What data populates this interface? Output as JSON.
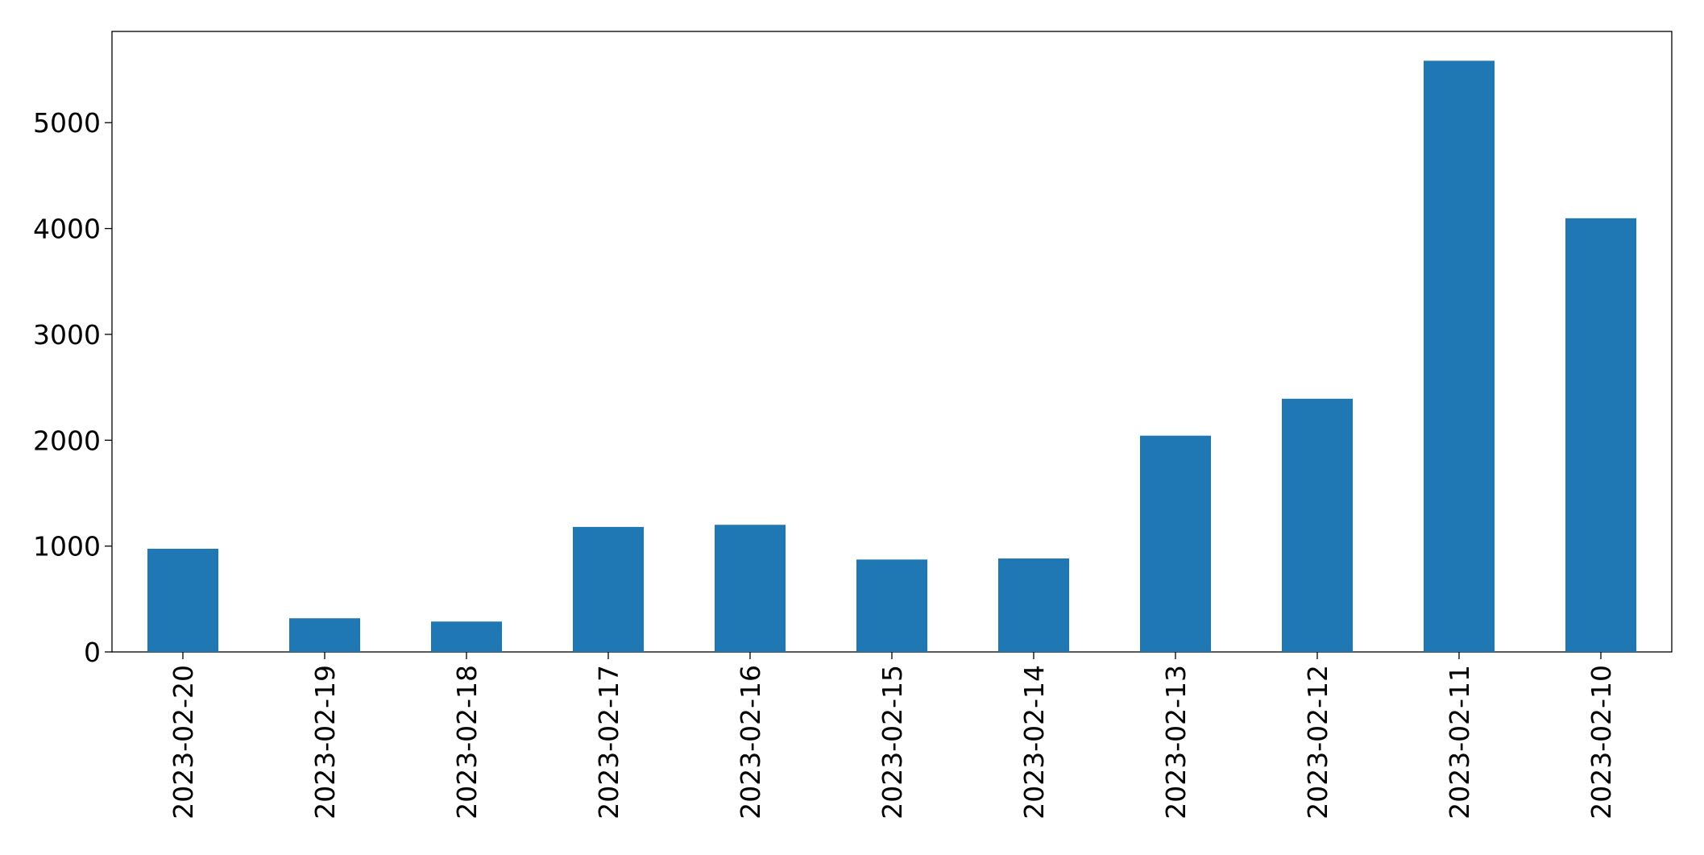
{
  "chart_data": {
    "type": "bar",
    "categories": [
      "2023-02-20",
      "2023-02-19",
      "2023-02-18",
      "2023-02-17",
      "2023-02-16",
      "2023-02-15",
      "2023-02-14",
      "2023-02-13",
      "2023-02-12",
      "2023-02-11",
      "2023-02-10"
    ],
    "values": [
      975,
      318,
      287,
      1181,
      1201,
      873,
      883,
      2043,
      2392,
      5585,
      4097
    ],
    "color": "#1f77b4",
    "ylim": [
      0,
      5862
    ],
    "yticks": [
      0,
      1000,
      2000,
      3000,
      4000,
      5000
    ],
    "grid": false
  }
}
